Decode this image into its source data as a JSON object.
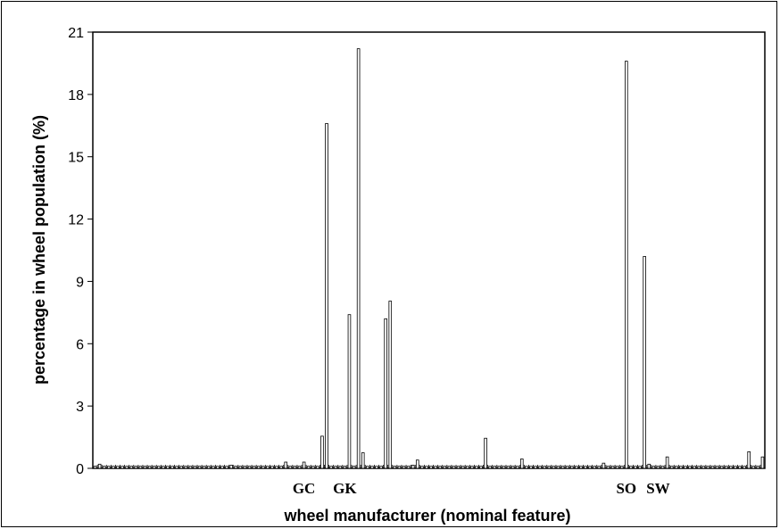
{
  "chart_data": {
    "type": "bar",
    "title": "",
    "xlabel": "wheel manufacturer (nominal feature)",
    "ylabel": "percentage in wheel population (%)",
    "ylim": [
      0,
      21
    ],
    "yticks": [
      "0",
      "3",
      "6",
      "9",
      "12",
      "15",
      "18",
      "21"
    ],
    "grid": false,
    "legend": "none",
    "bar_fill": "#ffffff",
    "bar_stroke": "#000000",
    "category_count": 148,
    "category_labels": [
      {
        "label": "GC",
        "index": 46
      },
      {
        "label": "GK",
        "index": 55
      },
      {
        "label": "SO",
        "index": 117
      },
      {
        "label": "SW",
        "index": 124
      }
    ],
    "series": [
      {
        "values": [
          0.1,
          0.2,
          0.1,
          0.1,
          0.1,
          0.1,
          0.1,
          0.1,
          0.1,
          0.1,
          0.1,
          0.1,
          0.1,
          0.1,
          0.1,
          0.1,
          0.1,
          0.1,
          0.1,
          0.1,
          0.1,
          0.1,
          0.1,
          0.1,
          0.1,
          0.1,
          0.1,
          0.1,
          0.1,
          0.1,
          0.15,
          0.1,
          0.1,
          0.1,
          0.1,
          0.1,
          0.1,
          0.1,
          0.1,
          0.1,
          0.1,
          0.1,
          0.3,
          0.1,
          0.1,
          0.1,
          0.3,
          0.1,
          0.1,
          0.1,
          1.55,
          16.6,
          0.1,
          0.1,
          0.1,
          0.1,
          7.4,
          0.1,
          20.2,
          0.75,
          0.1,
          0.1,
          0.1,
          0.1,
          7.2,
          8.05,
          0.1,
          0.1,
          0.1,
          0.1,
          0.15,
          0.4,
          0.1,
          0.1,
          0.1,
          0.1,
          0.1,
          0.1,
          0.1,
          0.1,
          0.1,
          0.1,
          0.1,
          0.1,
          0.1,
          0.1,
          1.45,
          0.1,
          0.1,
          0.1,
          0.1,
          0.1,
          0.1,
          0.1,
          0.45,
          0.1,
          0.1,
          0.1,
          0.1,
          0.1,
          0.1,
          0.1,
          0.1,
          0.1,
          0.1,
          0.1,
          0.1,
          0.1,
          0.1,
          0.1,
          0.1,
          0.1,
          0.25,
          0.1,
          0.1,
          0.1,
          0.1,
          19.6,
          0.1,
          0.1,
          0.1,
          10.2,
          0.2,
          0.1,
          0.1,
          0.1,
          0.55,
          0.1,
          0.1,
          0.1,
          0.1,
          0.1,
          0.1,
          0.1,
          0.1,
          0.1,
          0.1,
          0.1,
          0.1,
          0.1,
          0.1,
          0.1,
          0.1,
          0.1,
          0.8,
          0.1,
          0.1,
          0.55
        ]
      }
    ]
  }
}
